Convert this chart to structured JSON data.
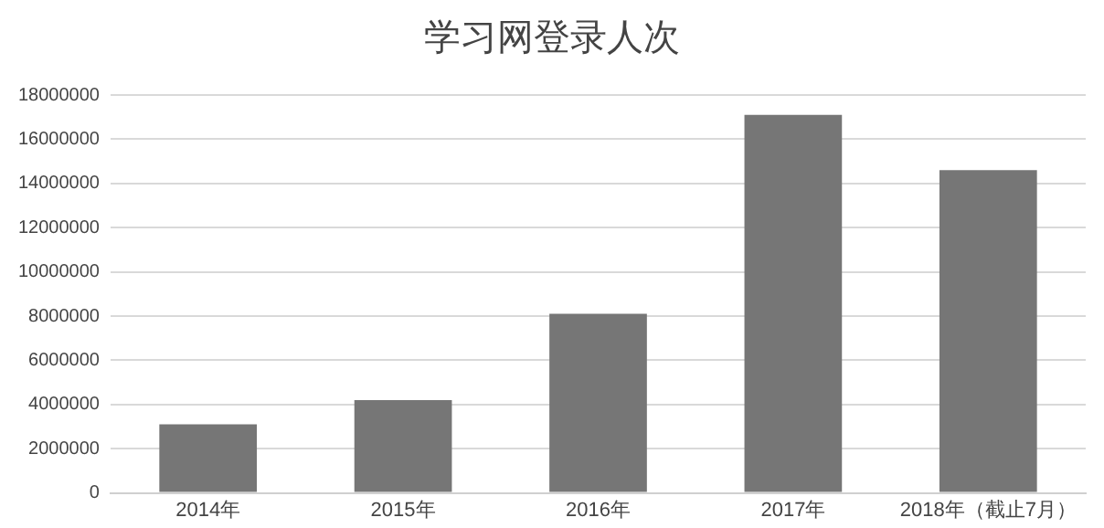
{
  "chart_data": {
    "type": "bar",
    "title": "学习网登录人次",
    "categories": [
      "2014年",
      "2015年",
      "2016年",
      "2017年",
      "2018年（截止7月）"
    ],
    "values": [
      3100000,
      4200000,
      8100000,
      17100000,
      14600000
    ],
    "color": "#767676",
    "ylim": [
      0,
      18000000
    ],
    "yticks": [
      0,
      2000000,
      4000000,
      6000000,
      8000000,
      10000000,
      12000000,
      14000000,
      16000000,
      18000000
    ],
    "grid": "y"
  }
}
